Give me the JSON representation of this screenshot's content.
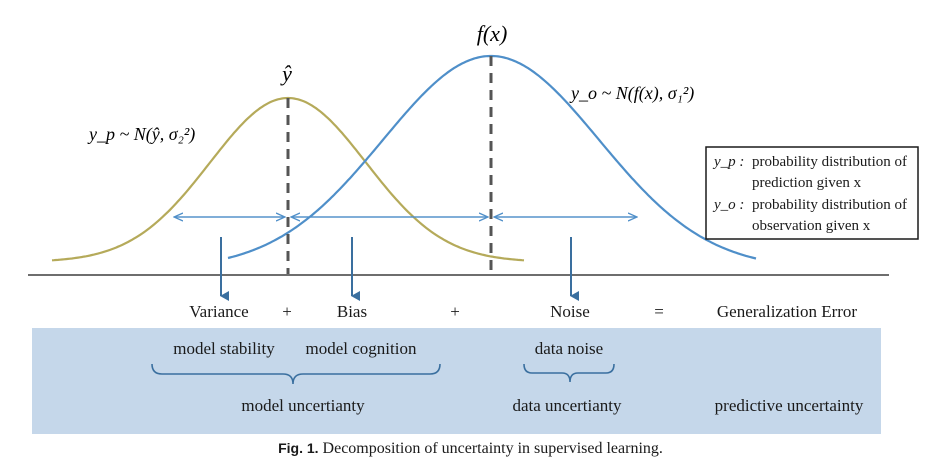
{
  "colors": {
    "pred_curve": "#b5aa5a",
    "obs_curve": "#4f8fc9",
    "arrow": "#4f8fc9",
    "dark_arrow": "#3a6f9f",
    "band": "#c5d7ea",
    "dashed": "#555555"
  },
  "labels": {
    "yhat": "ŷ",
    "fx": "f(x)",
    "yp_dist": "y_p ~ N(ŷ, σ₂²)",
    "yo_dist": "y_o ~ N(f(x), σ₁²)"
  },
  "legend": {
    "row1_symbol": "y_p :",
    "row1_text_line1": "probability distribution of",
    "row1_text_line2": "prediction given x",
    "row2_symbol": "y_o :",
    "row2_text_line1": "probability distribution of",
    "row2_text_line2": "observation given x"
  },
  "equation": {
    "variance": "Variance",
    "plus1": "+",
    "bias": "Bias",
    "plus2": "+",
    "noise": "Noise",
    "equals": "=",
    "generalization": "Generalization Error"
  },
  "band": {
    "model_stability": "model stability",
    "model_cognition": "model cognition",
    "data_noise": "data noise",
    "model_uncertainty": "model uncertianty",
    "data_uncertainty": "data uncertianty",
    "predictive_uncertainty": "predictive uncertainty"
  },
  "caption": {
    "label": "Fig. 1.",
    "text": "Decomposition of uncertainty in supervised learning."
  }
}
